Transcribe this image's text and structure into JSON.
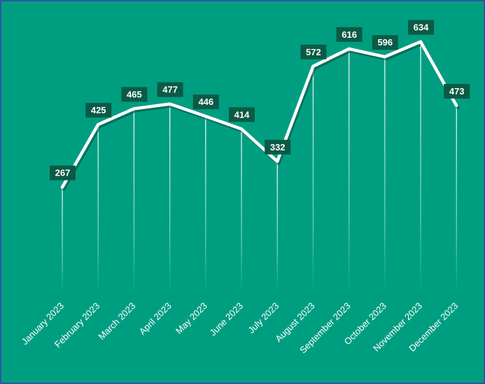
{
  "chart_data": {
    "type": "line",
    "title": "",
    "xlabel": "",
    "ylabel": "",
    "categories": [
      "January 2023",
      "February 2023",
      "March 2023",
      "April 2023",
      "May 2023",
      "June 2023",
      "July 2023",
      "August 2023",
      "September 2023",
      "October 2023",
      "November 2023",
      "December 2023"
    ],
    "values": [
      267,
      425,
      465,
      477,
      446,
      414,
      332,
      572,
      616,
      596,
      634,
      473
    ],
    "ylim": [
      0,
      700
    ],
    "grid": false,
    "legend": "none",
    "data_labels": true
  },
  "colors": {
    "background": "#009e81",
    "line": "#ffffff",
    "label_box": "#0b5a45",
    "border": "#2f55a4"
  }
}
